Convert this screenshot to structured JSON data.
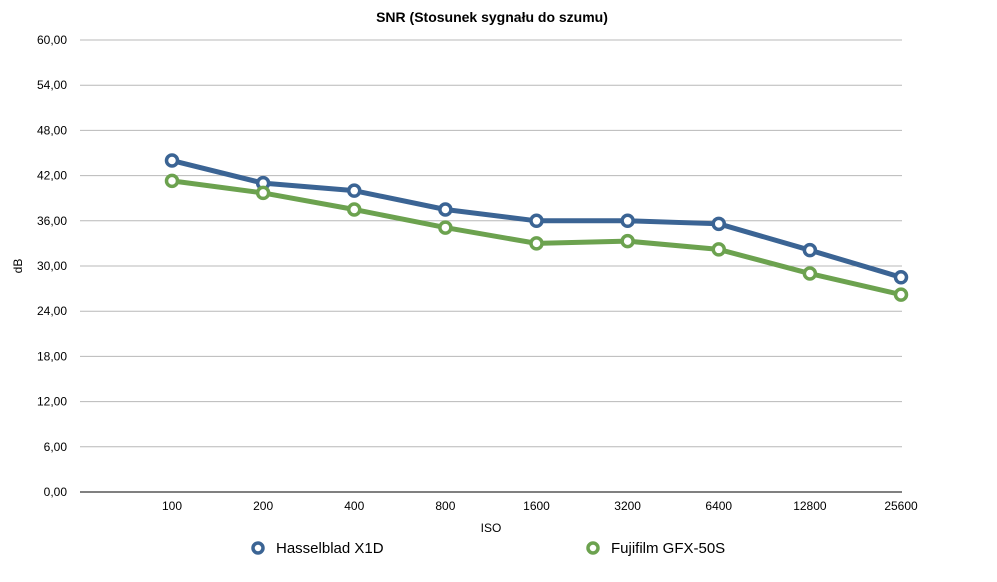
{
  "chart_data": {
    "type": "line",
    "title": "SNR (Stosunek sygnału do szumu)",
    "xlabel": "ISO",
    "ylabel": "dB",
    "categories": [
      "100",
      "200",
      "400",
      "800",
      "1600",
      "3200",
      "6400",
      "12800",
      "25600"
    ],
    "y_ticks": [
      "0,00",
      "6,00",
      "12,00",
      "18,00",
      "24,00",
      "30,00",
      "36,00",
      "42,00",
      "48,00",
      "54,00",
      "60,00"
    ],
    "ylim": [
      0,
      60
    ],
    "grid": true,
    "legend_position": "bottom",
    "series": [
      {
        "name": "Hasselblad X1D",
        "color": "#3b6494",
        "values": [
          44.0,
          41.0,
          40.0,
          37.5,
          36.0,
          36.0,
          35.6,
          32.1,
          28.5
        ]
      },
      {
        "name": "Fujifilm GFX-50S",
        "color": "#6ca24f",
        "values": [
          41.3,
          39.7,
          37.5,
          35.1,
          33.0,
          33.3,
          32.2,
          29.0,
          26.2
        ]
      }
    ]
  }
}
